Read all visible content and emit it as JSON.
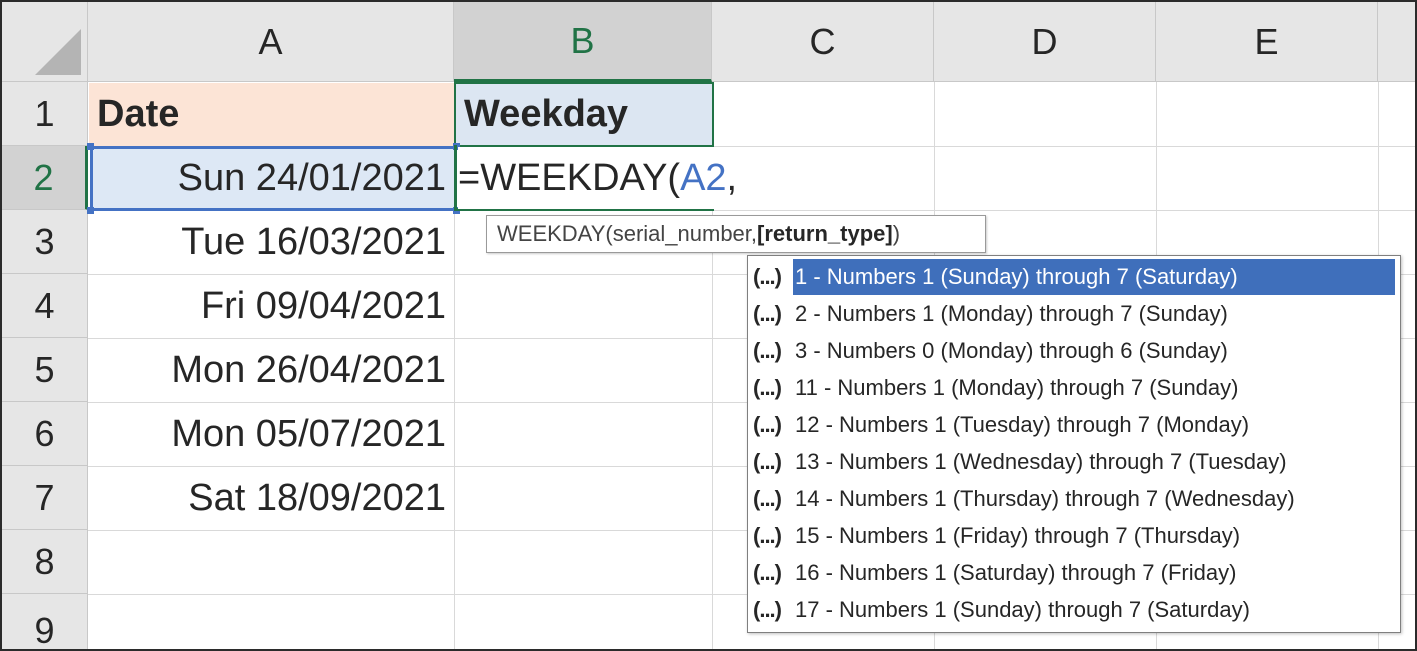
{
  "columns": [
    "A",
    "B",
    "C",
    "D",
    "E"
  ],
  "rows": [
    "1",
    "2",
    "3",
    "4",
    "5",
    "6",
    "7",
    "8",
    "9"
  ],
  "header_row": {
    "a1": "Date",
    "b1": "Weekday"
  },
  "dates": [
    "Sun 24/01/2021",
    "Tue 16/03/2021",
    "Fri 09/04/2021",
    "Mon 26/04/2021",
    "Mon 05/07/2021",
    "Sat 18/09/2021"
  ],
  "formula": {
    "prefix": "=WEEKDAY(",
    "ref": "A2",
    "suffix": ","
  },
  "tooltip": {
    "func": "WEEKDAY(serial_number, ",
    "arg": "[return_type]",
    "close": ")"
  },
  "dropdown": {
    "icon": "(...)",
    "items": [
      "1 - Numbers 1 (Sunday) through 7 (Saturday)",
      "2 - Numbers 1 (Monday) through 7 (Sunday)",
      "3 - Numbers 0 (Monday) through 6 (Sunday)",
      "11 - Numbers 1 (Monday) through 7 (Sunday)",
      "12 - Numbers 1 (Tuesday) through 7 (Monday)",
      "13 - Numbers 1 (Wednesday) through 7 (Tuesday)",
      "14 - Numbers 1 (Thursday) through 7 (Wednesday)",
      "15 - Numbers 1 (Friday) through 7 (Thursday)",
      "16 - Numbers 1 (Saturday) through 7 (Friday)",
      "17 - Numbers 1 (Sunday) through 7 (Saturday)"
    ]
  },
  "colors": {
    "accent_green": "#217346",
    "ref_blue": "#4472c4",
    "header_a_fill": "#fce4d6",
    "header_b_fill": "#dce6f2",
    "highlight": "#3f6fbb"
  }
}
